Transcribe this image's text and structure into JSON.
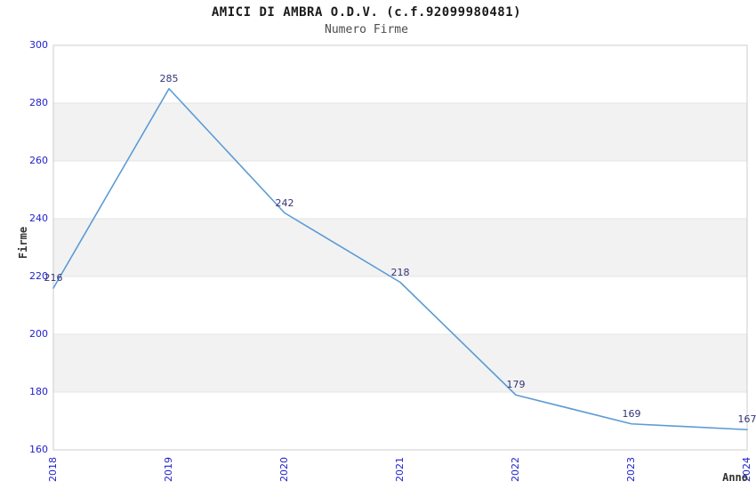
{
  "chart_data": {
    "type": "line",
    "title": "AMICI DI AMBRA O.D.V. (c.f.92099980481)",
    "subtitle": "Numero Firme",
    "xlabel": "Anno",
    "ylabel": "Firme",
    "categories": [
      "2018",
      "2019",
      "2020",
      "2021",
      "2022",
      "2023",
      "2024"
    ],
    "series": [
      {
        "name": "Numero Firme",
        "values": [
          216,
          285,
          242,
          218,
          179,
          169,
          167
        ]
      }
    ],
    "value_labels": [
      "216",
      "285",
      "242",
      "218",
      "179",
      "169",
      "167"
    ],
    "ylim": [
      160,
      300
    ],
    "yticks": [
      160,
      180,
      200,
      220,
      240,
      260,
      280,
      300
    ],
    "grid": "horizontal-bands",
    "legend": "none",
    "markers": "none",
    "colors": {
      "line": "#5b9bd5",
      "tick_label": "#2222cc",
      "value_label": "#333377",
      "band_fill": "#f2f2f2",
      "gridline": "#e4e4e4",
      "plot_border": "#cccccc",
      "title": "#1a1a1a",
      "subtitle": "#4d4d4d",
      "axis_label": "#333333",
      "background": "#ffffff"
    }
  }
}
